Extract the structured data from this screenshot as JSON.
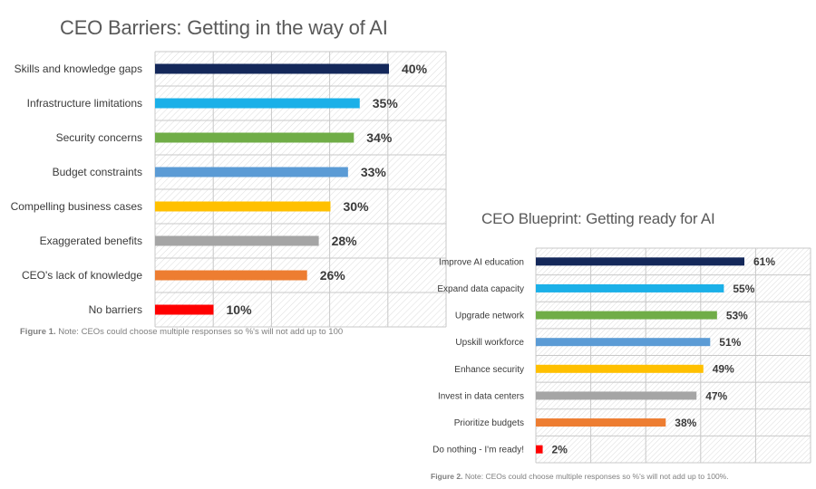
{
  "chart_data": [
    {
      "type": "bar",
      "orientation": "horizontal",
      "title": "CEO Barriers: Getting in the way of AI",
      "categories": [
        "Skills and knowledge gaps",
        "Infrastructure limitations",
        "Security concerns",
        "Budget constraints",
        "Compelling business cases",
        "Exaggerated benefits",
        "CEO's lack of knowledge",
        "No barriers"
      ],
      "values": [
        40,
        35,
        34,
        33,
        30,
        28,
        26,
        10
      ],
      "value_labels": [
        "40%",
        "35%",
        "34%",
        "33%",
        "30%",
        "28%",
        "26%",
        "10%"
      ],
      "colors": [
        "#14285a",
        "#1bb0e8",
        "#70ad47",
        "#5b9bd5",
        "#ffc000",
        "#a5a5a5",
        "#ed7d31",
        "#ff0000"
      ],
      "xlim": [
        0,
        40
      ],
      "grid": true,
      "xlabel": "",
      "ylabel": "",
      "caption_prefix": "Figure 1.",
      "caption": "Note: CEOs could choose multiple responses so %'s will not add up to 100"
    },
    {
      "type": "bar",
      "orientation": "horizontal",
      "title": "CEO Blueprint: Getting ready for AI",
      "categories": [
        "Improve AI education",
        "Expand data capacity",
        "Upgrade network",
        "Upskill workforce",
        "Enhance security",
        "Invest in data centers",
        "Prioritize budgets",
        "Do nothing - I'm ready!"
      ],
      "values": [
        61,
        55,
        53,
        51,
        49,
        47,
        38,
        2
      ],
      "value_labels": [
        "61%",
        "55%",
        "53%",
        "51%",
        "49%",
        "47%",
        "38%",
        "2%"
      ],
      "colors": [
        "#14285a",
        "#1bb0e8",
        "#70ad47",
        "#5b9bd5",
        "#ffc000",
        "#a5a5a5",
        "#ed7d31",
        "#ff0000"
      ],
      "xlim": [
        0,
        61
      ],
      "grid": true,
      "xlabel": "",
      "ylabel": "",
      "caption_prefix": "Figure 2.",
      "caption": "Note: CEOs could choose multiple responses so %'s will not add up to 100%."
    }
  ]
}
